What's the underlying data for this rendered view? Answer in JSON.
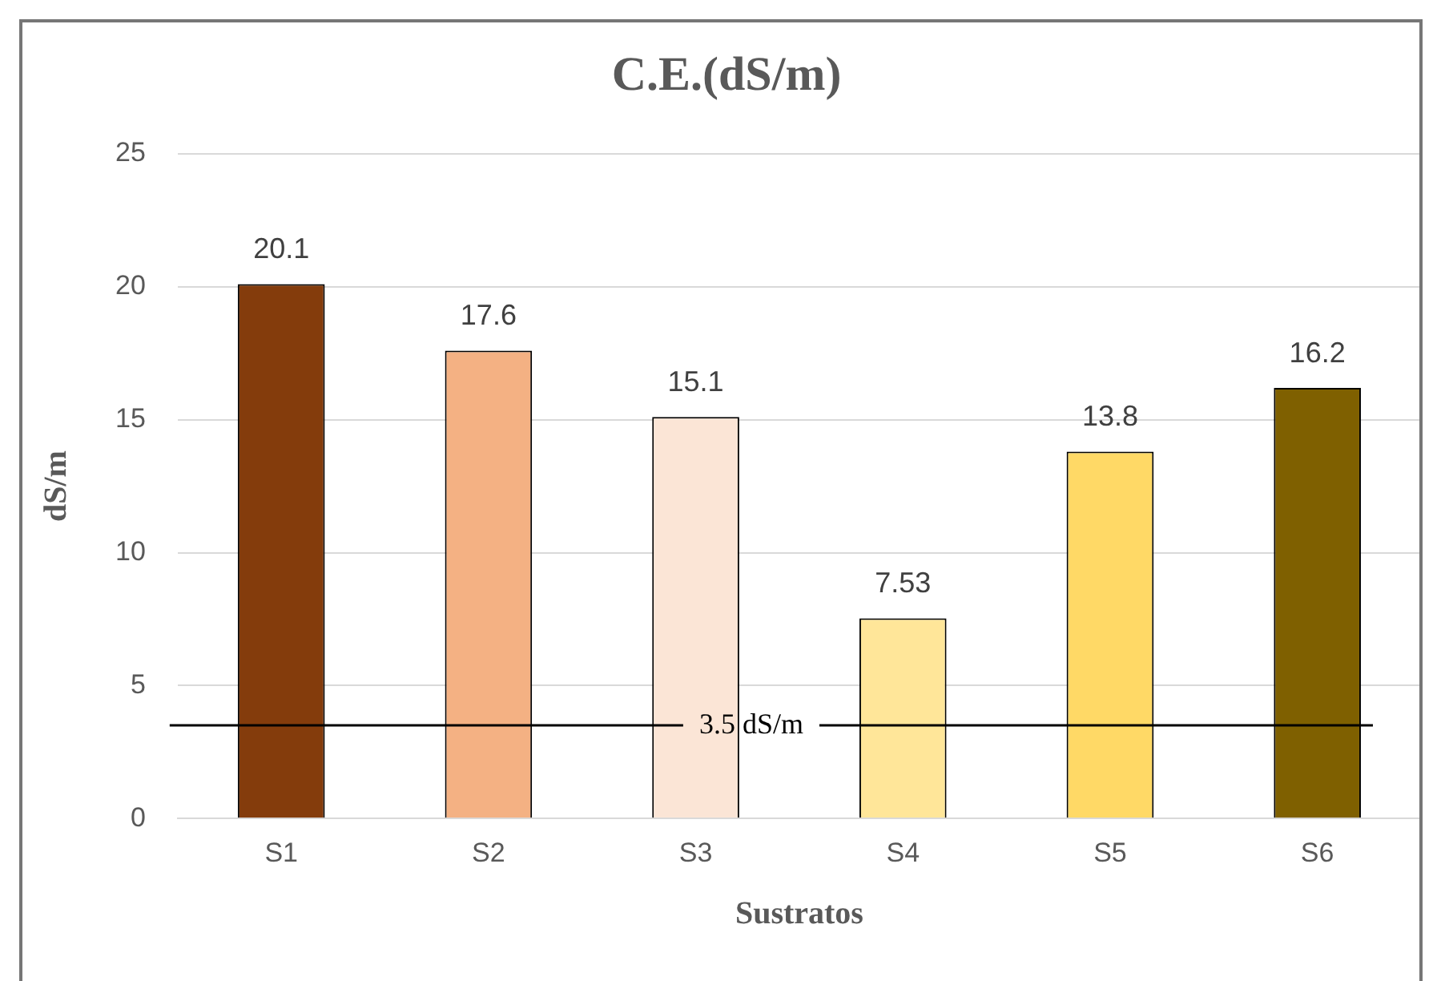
{
  "chart_data": {
    "type": "bar",
    "title": "C.E.(dS/m)",
    "xlabel": "Sustratos",
    "ylabel": "dS/m",
    "categories": [
      "S1",
      "S2",
      "S3",
      "S4",
      "S5",
      "S6"
    ],
    "values": [
      20.1,
      17.6,
      15.1,
      7.53,
      13.8,
      16.2
    ],
    "colors": [
      "#843c0c",
      "#f4b183",
      "#fbe5d6",
      "#ffe699",
      "#ffd966",
      "#7f6000"
    ],
    "ylim": [
      0,
      25
    ],
    "yticks": [
      0,
      5,
      10,
      15,
      20,
      25
    ],
    "grid": "y",
    "legend": false,
    "data_labels": true,
    "ref_lines": [
      {
        "axis": "y",
        "value": 3.5,
        "label": "3.5 dS/m",
        "color": "#000000",
        "line_style": "solid"
      }
    ]
  }
}
